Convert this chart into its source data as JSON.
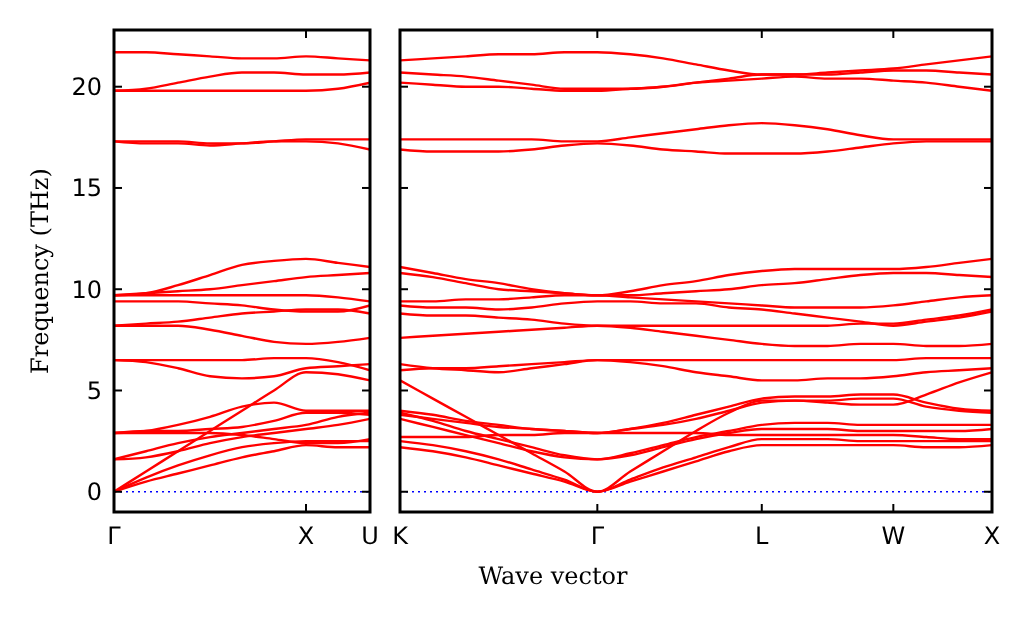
{
  "chart_data": [
    {
      "type": "line",
      "ylabel": "Frequency (THz)",
      "categories": [
        "Γ",
        null,
        null,
        null,
        null,
        null,
        "X",
        null,
        "U"
      ],
      "ylim": [
        -1,
        22.8
      ],
      "yticks": [
        0,
        5,
        10,
        15,
        20
      ],
      "ref_lines": [
        {
          "axis": "y",
          "value": 0,
          "color": "#0000ff",
          "line_style": "dotted"
        }
      ],
      "series": [
        {
          "color": "#ff0000",
          "values": [
            0,
            0.5,
            0.9,
            1.3,
            1.7,
            2.0,
            2.3,
            2.2,
            2.2
          ]
        },
        {
          "color": "#ff0000",
          "values": [
            0,
            0.7,
            1.3,
            1.8,
            2.2,
            2.4,
            2.5,
            2.5,
            2.5
          ]
        },
        {
          "color": "#ff0000",
          "values": [
            0,
            1.0,
            2.0,
            3.0,
            4.0,
            5.0,
            5.9,
            5.8,
            5.5
          ]
        },
        {
          "color": "#ff0000",
          "values": [
            1.6,
            1.7,
            2.0,
            2.4,
            2.7,
            2.9,
            3.1,
            3.3,
            3.6
          ]
        },
        {
          "color": "#ff0000",
          "values": [
            1.6,
            2.0,
            2.4,
            2.7,
            2.9,
            3.1,
            3.3,
            3.7,
            3.9
          ]
        },
        {
          "color": "#ff0000",
          "values": [
            2.9,
            3.0,
            3.3,
            3.7,
            4.2,
            4.4,
            4.0,
            4.0,
            4.0
          ]
        },
        {
          "color": "#ff0000",
          "values": [
            2.9,
            2.9,
            2.9,
            2.9,
            2.8,
            2.6,
            2.4,
            2.4,
            2.6
          ]
        },
        {
          "color": "#ff0000",
          "values": [
            2.9,
            3.0,
            3.0,
            3.1,
            3.2,
            3.5,
            3.9,
            3.9,
            3.8
          ]
        },
        {
          "color": "#ff0000",
          "values": [
            6.5,
            6.5,
            6.5,
            6.5,
            6.5,
            6.6,
            6.6,
            6.4,
            6.0
          ]
        },
        {
          "color": "#ff0000",
          "values": [
            6.5,
            6.4,
            6.1,
            5.7,
            5.6,
            5.7,
            6.1,
            6.2,
            6.3
          ]
        },
        {
          "color": "#ff0000",
          "values": [
            8.2,
            8.2,
            8.2,
            8.0,
            7.7,
            7.4,
            7.3,
            7.4,
            7.6
          ]
        },
        {
          "color": "#ff0000",
          "values": [
            8.2,
            8.3,
            8.4,
            8.6,
            8.8,
            8.9,
            9.0,
            9.0,
            8.8
          ]
        },
        {
          "color": "#ff0000",
          "values": [
            9.4,
            9.4,
            9.4,
            9.3,
            9.2,
            9.0,
            8.9,
            8.9,
            9.2
          ]
        },
        {
          "color": "#ff0000",
          "values": [
            9.7,
            9.8,
            10.2,
            10.7,
            11.2,
            11.4,
            11.5,
            11.3,
            11.1
          ]
        },
        {
          "color": "#ff0000",
          "values": [
            9.7,
            9.8,
            9.9,
            10.0,
            10.2,
            10.4,
            10.6,
            10.7,
            10.8
          ]
        },
        {
          "color": "#ff0000",
          "values": [
            9.7,
            9.7,
            9.7,
            9.7,
            9.7,
            9.7,
            9.7,
            9.6,
            9.4
          ]
        },
        {
          "color": "#ff0000",
          "values": [
            17.3,
            17.3,
            17.3,
            17.2,
            17.2,
            17.3,
            17.4,
            17.4,
            17.4
          ]
        },
        {
          "color": "#ff0000",
          "values": [
            17.3,
            17.2,
            17.2,
            17.1,
            17.2,
            17.3,
            17.3,
            17.2,
            16.9
          ]
        },
        {
          "color": "#ff0000",
          "values": [
            19.8,
            19.8,
            19.8,
            19.8,
            19.8,
            19.8,
            19.8,
            19.9,
            20.2
          ]
        },
        {
          "color": "#ff0000",
          "values": [
            19.8,
            19.9,
            20.2,
            20.5,
            20.7,
            20.7,
            20.6,
            20.6,
            20.7
          ]
        },
        {
          "color": "#ff0000",
          "values": [
            21.7,
            21.7,
            21.6,
            21.5,
            21.4,
            21.4,
            21.5,
            21.4,
            21.3
          ]
        }
      ]
    },
    {
      "type": "line",
      "xlabel": "Wave vector",
      "tick_labels": "x",
      "categories": [
        "K",
        null,
        null,
        null,
        null,
        null,
        "Γ",
        null,
        null,
        null,
        null,
        "L",
        null,
        null,
        null,
        "W",
        null,
        null,
        "X"
      ],
      "ylim": [
        -1,
        22.8
      ],
      "yticks": [
        0,
        5,
        10,
        15,
        20
      ],
      "ref_lines": [
        {
          "axis": "y",
          "value": 0,
          "color": "#0000ff",
          "line_style": "dotted"
        }
      ],
      "series": [
        {
          "color": "#ff0000",
          "values": [
            2.2,
            2.0,
            1.7,
            1.3,
            0.9,
            0.5,
            0,
            0.5,
            1.0,
            1.5,
            2.0,
            2.3,
            2.3,
            2.3,
            2.3,
            2.3,
            2.2,
            2.2,
            2.3
          ]
        },
        {
          "color": "#ff0000",
          "values": [
            2.5,
            2.3,
            2.0,
            1.6,
            1.1,
            0.6,
            0,
            0.6,
            1.2,
            1.7,
            2.2,
            2.6,
            2.6,
            2.6,
            2.5,
            2.5,
            2.5,
            2.5,
            2.5
          ]
        },
        {
          "color": "#ff0000",
          "values": [
            5.5,
            4.6,
            3.7,
            2.8,
            1.9,
            1.0,
            0,
            1.0,
            2.0,
            3.0,
            3.9,
            4.5,
            4.5,
            4.4,
            4.3,
            4.3,
            4.8,
            5.4,
            5.9
          ]
        },
        {
          "color": "#ff0000",
          "values": [
            3.6,
            3.2,
            2.8,
            2.4,
            2.0,
            1.7,
            1.6,
            1.8,
            2.2,
            2.6,
            2.9,
            3.1,
            3.1,
            3.1,
            3.0,
            3.0,
            3.0,
            3.0,
            3.1
          ]
        },
        {
          "color": "#ff0000",
          "values": [
            3.9,
            3.5,
            3.0,
            2.6,
            2.2,
            1.8,
            1.6,
            1.9,
            2.3,
            2.7,
            3.0,
            3.3,
            3.4,
            3.4,
            3.3,
            3.3,
            3.3,
            3.3,
            3.3
          ]
        },
        {
          "color": "#ff0000",
          "values": [
            4.0,
            3.8,
            3.5,
            3.3,
            3.1,
            3.0,
            2.9,
            3.1,
            3.4,
            3.8,
            4.2,
            4.6,
            4.7,
            4.7,
            4.8,
            4.8,
            4.4,
            4.1,
            4.0
          ]
        },
        {
          "color": "#ff0000",
          "values": [
            2.7,
            2.7,
            2.7,
            2.8,
            2.8,
            2.9,
            2.9,
            2.9,
            2.9,
            2.9,
            2.8,
            2.8,
            2.8,
            2.8,
            2.8,
            2.8,
            2.7,
            2.6,
            2.6
          ]
        },
        {
          "color": "#ff0000",
          "values": [
            3.8,
            3.6,
            3.4,
            3.2,
            3.1,
            3.0,
            2.9,
            3.1,
            3.3,
            3.6,
            4.0,
            4.4,
            4.5,
            4.5,
            4.6,
            4.6,
            4.2,
            4.0,
            3.9
          ]
        },
        {
          "color": "#ff0000",
          "values": [
            6.0,
            6.1,
            6.1,
            6.2,
            6.3,
            6.4,
            6.5,
            6.5,
            6.5,
            6.5,
            6.5,
            6.5,
            6.5,
            6.5,
            6.5,
            6.5,
            6.6,
            6.6,
            6.6
          ]
        },
        {
          "color": "#ff0000",
          "values": [
            6.3,
            6.1,
            6.0,
            5.9,
            6.1,
            6.3,
            6.5,
            6.4,
            6.2,
            5.9,
            5.7,
            5.5,
            5.5,
            5.6,
            5.6,
            5.7,
            5.9,
            6.0,
            6.1
          ]
        },
        {
          "color": "#ff0000",
          "values": [
            7.6,
            7.7,
            7.8,
            7.9,
            8.0,
            8.1,
            8.2,
            8.1,
            7.9,
            7.7,
            7.5,
            7.3,
            7.2,
            7.2,
            7.3,
            7.3,
            7.2,
            7.2,
            7.3
          ]
        },
        {
          "color": "#ff0000",
          "values": [
            8.8,
            8.7,
            8.7,
            8.6,
            8.5,
            8.3,
            8.2,
            8.2,
            8.2,
            8.2,
            8.2,
            8.2,
            8.2,
            8.2,
            8.3,
            8.3,
            8.5,
            8.7,
            9.0
          ]
        },
        {
          "color": "#ff0000",
          "values": [
            9.2,
            9.1,
            9.1,
            9.0,
            9.1,
            9.3,
            9.4,
            9.4,
            9.3,
            9.3,
            9.1,
            9.0,
            8.8,
            8.6,
            8.4,
            8.2,
            8.4,
            8.6,
            8.9
          ]
        },
        {
          "color": "#ff0000",
          "values": [
            11.1,
            10.8,
            10.5,
            10.3,
            10.0,
            9.8,
            9.7,
            9.9,
            10.2,
            10.4,
            10.7,
            10.9,
            11.0,
            11.0,
            11.0,
            11.0,
            11.1,
            11.3,
            11.5
          ]
        },
        {
          "color": "#ff0000",
          "values": [
            10.8,
            10.6,
            10.3,
            10.0,
            9.9,
            9.8,
            9.7,
            9.7,
            9.8,
            9.9,
            10.0,
            10.2,
            10.3,
            10.5,
            10.7,
            10.8,
            10.8,
            10.7,
            10.6
          ]
        },
        {
          "color": "#ff0000",
          "values": [
            9.4,
            9.4,
            9.5,
            9.5,
            9.6,
            9.7,
            9.7,
            9.6,
            9.5,
            9.4,
            9.3,
            9.2,
            9.1,
            9.1,
            9.1,
            9.2,
            9.4,
            9.6,
            9.7
          ]
        },
        {
          "color": "#ff0000",
          "values": [
            17.4,
            17.4,
            17.4,
            17.4,
            17.4,
            17.3,
            17.3,
            17.5,
            17.7,
            17.9,
            18.1,
            18.2,
            18.1,
            17.9,
            17.6,
            17.4,
            17.4,
            17.4,
            17.4
          ]
        },
        {
          "color": "#ff0000",
          "values": [
            16.9,
            16.8,
            16.8,
            16.8,
            16.9,
            17.1,
            17.2,
            17.1,
            16.9,
            16.8,
            16.7,
            16.7,
            16.7,
            16.8,
            17.0,
            17.2,
            17.3,
            17.3,
            17.3
          ]
        },
        {
          "color": "#ff0000",
          "values": [
            20.2,
            20.1,
            20.0,
            20.0,
            19.9,
            19.8,
            19.8,
            19.9,
            20.0,
            20.2,
            20.3,
            20.4,
            20.5,
            20.4,
            20.4,
            20.3,
            20.2,
            20.0,
            19.8
          ]
        },
        {
          "color": "#ff0000",
          "values": [
            20.7,
            20.6,
            20.5,
            20.3,
            20.1,
            19.9,
            19.9,
            19.9,
            20.0,
            20.2,
            20.4,
            20.6,
            20.6,
            20.6,
            20.7,
            20.8,
            20.8,
            20.7,
            20.6
          ]
        },
        {
          "color": "#ff0000",
          "values": [
            21.3,
            21.4,
            21.5,
            21.6,
            21.6,
            21.7,
            21.7,
            21.6,
            21.4,
            21.1,
            20.8,
            20.6,
            20.6,
            20.7,
            20.8,
            20.9,
            21.1,
            21.3,
            21.5
          ]
        }
      ]
    }
  ]
}
